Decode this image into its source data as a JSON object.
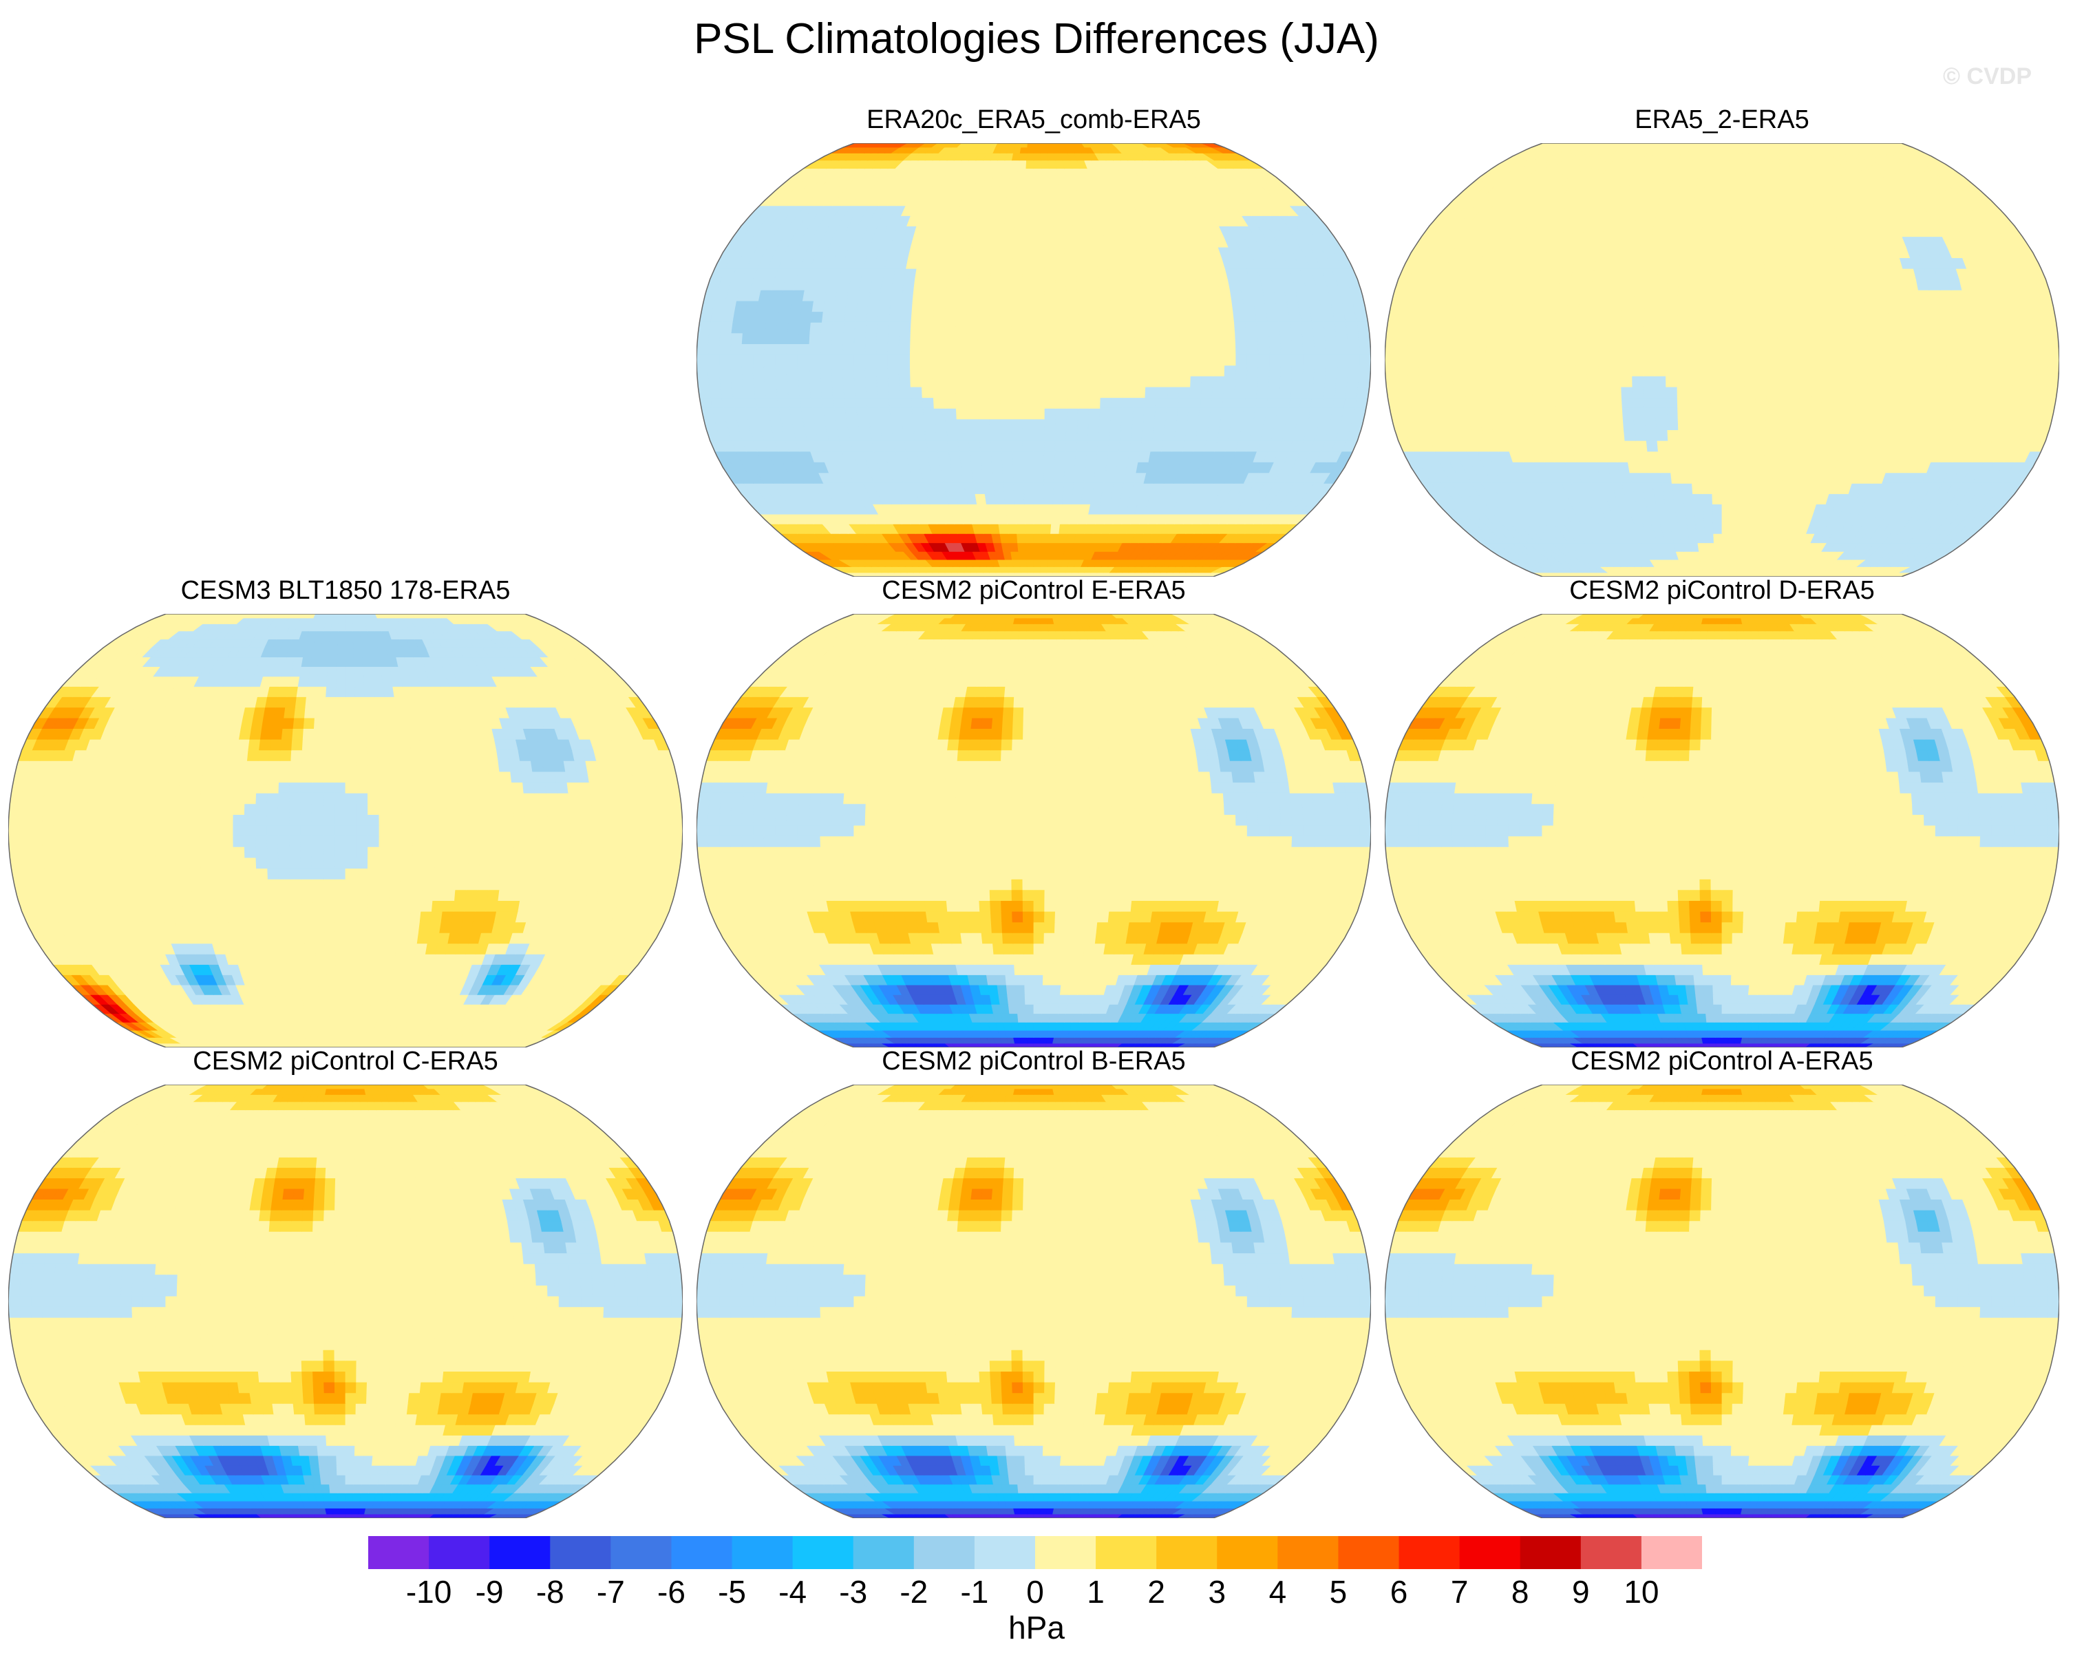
{
  "title": "PSL Climatologies Differences (JJA)",
  "watermark": "© CVDP",
  "chart_data": {
    "type": "heatmap",
    "title": "PSL Climatologies Differences (JJA)",
    "projection": "Robinson",
    "variable": "PSL",
    "season": "JJA",
    "units": "hPa",
    "panels": [
      {
        "id": "era20c",
        "title": "ERA20c_ERA5_comb-ERA5",
        "pattern": "era20c"
      },
      {
        "id": "era5_2",
        "title": "ERA5_2-ERA5",
        "pattern": "near_zero"
      },
      {
        "id": "cesm3",
        "title": "CESM3 BLT1850 178-ERA5",
        "pattern": "cesm3"
      },
      {
        "id": "cesm2_e",
        "title": "CESM2 piControl E-ERA5",
        "pattern": "cesm2"
      },
      {
        "id": "cesm2_d",
        "title": "CESM2 piControl D-ERA5",
        "pattern": "cesm2"
      },
      {
        "id": "cesm2_c",
        "title": "CESM2 piControl C-ERA5",
        "pattern": "cesm2"
      },
      {
        "id": "cesm2_b",
        "title": "CESM2 piControl B-ERA5",
        "pattern": "cesm2"
      },
      {
        "id": "cesm2_a",
        "title": "CESM2 piControl A-ERA5",
        "pattern": "cesm2"
      }
    ],
    "colorbar": {
      "levels": [
        -10,
        -9,
        -8,
        -7,
        -6,
        -5,
        -4,
        -3,
        -2,
        -1,
        0,
        1,
        2,
        3,
        4,
        5,
        6,
        7,
        8,
        9,
        10
      ],
      "tick_labels": [
        "-10",
        "-9",
        "-8",
        "-7",
        "-6",
        "-5",
        "-4",
        "-3",
        "-2",
        "-1",
        "0",
        "1",
        "2",
        "3",
        "4",
        "5",
        "6",
        "7",
        "8",
        "9",
        "10"
      ],
      "colors": [
        "#7e28e6",
        "#4f1ff0",
        "#1414ff",
        "#3b5cdb",
        "#3f78e6",
        "#2c8cff",
        "#1ea5ff",
        "#14c3ff",
        "#55c2f0",
        "#9cd1ee",
        "#bde3f5",
        "#fff5a6",
        "#ffe046",
        "#ffc41a",
        "#ffa600",
        "#ff8500",
        "#ff5a00",
        "#ff2200",
        "#f50000",
        "#c80000",
        "#e04848",
        "#ffb4b4"
      ],
      "units": "hPa"
    }
  }
}
